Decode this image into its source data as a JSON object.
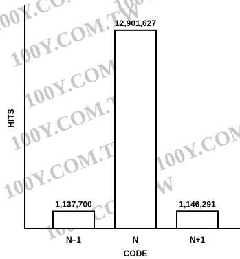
{
  "chart_data": {
    "type": "bar",
    "categories": [
      "N–1",
      "N",
      "N+1"
    ],
    "values": [
      1137700,
      12901627,
      1146291
    ],
    "value_labels": [
      "1,137,700",
      "12,901,627",
      "1,146,291"
    ],
    "title": "",
    "xlabel": "CODE",
    "ylabel": "HITS",
    "ylim": [
      0,
      14500000
    ],
    "grid": false,
    "legend": "none",
    "bar_fill": "#ffffff",
    "bar_stroke": "#000000"
  },
  "watermark": {
    "text": "100Y.COM.TW",
    "color": "#c8c8c8"
  }
}
